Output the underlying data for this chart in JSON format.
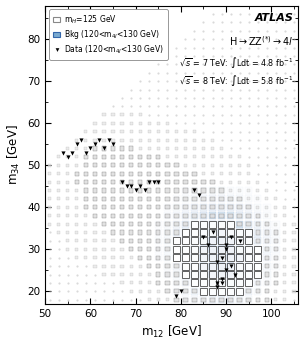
{
  "xlabel": "m$_{12}$ [GeV]",
  "ylabel": "m$_{34}$ [GeV]",
  "xlim": [
    50,
    106
  ],
  "ylim": [
    17,
    88
  ],
  "xticks": [
    50,
    60,
    70,
    80,
    90,
    100
  ],
  "yticks": [
    20,
    30,
    40,
    50,
    60,
    70,
    80
  ],
  "legend_signal": "m$_{H}$=125 GeV",
  "legend_bkg": "Bkg (120<m$_{4l}$<130 GeV)",
  "legend_data": "Data (120<m$_{4l}$<130 GeV)",
  "fig_width": 3.04,
  "fig_height": 3.46,
  "dpi": 100,
  "bg_color": "#ffffff",
  "plot_bg": "#ffffff",
  "bkg_color_light": "#c5d8ee",
  "bkg_color_mid": "#7aaad0",
  "bkg_color_dark": "#2255aa",
  "signal_dot_color": "#d0d0d0",
  "signal_dot_edge": "#aaaaaa",
  "signal_sq_edge": "#555555",
  "data_color": "black",
  "sq_size": 1.65,
  "dot_size": 0.7,
  "data_points_m12": [
    56,
    57,
    58,
    59,
    60,
    61,
    62,
    63,
    64,
    65,
    55,
    67,
    68,
    69,
    70,
    71,
    72,
    73,
    74,
    75,
    54,
    79,
    80,
    83,
    84,
    85,
    86,
    87,
    88,
    89,
    90,
    91,
    92,
    93,
    88,
    89,
    90,
    91,
    88,
    89,
    90
  ],
  "data_points_m34": [
    53,
    55,
    56,
    53,
    54,
    55,
    56,
    54,
    56,
    55,
    52,
    46,
    45,
    45,
    44,
    45,
    44,
    46,
    46,
    46,
    53,
    19,
    20,
    44,
    43,
    33,
    31,
    34,
    27,
    28,
    30,
    26,
    24,
    32,
    22,
    23,
    25,
    33,
    21,
    22,
    31
  ]
}
